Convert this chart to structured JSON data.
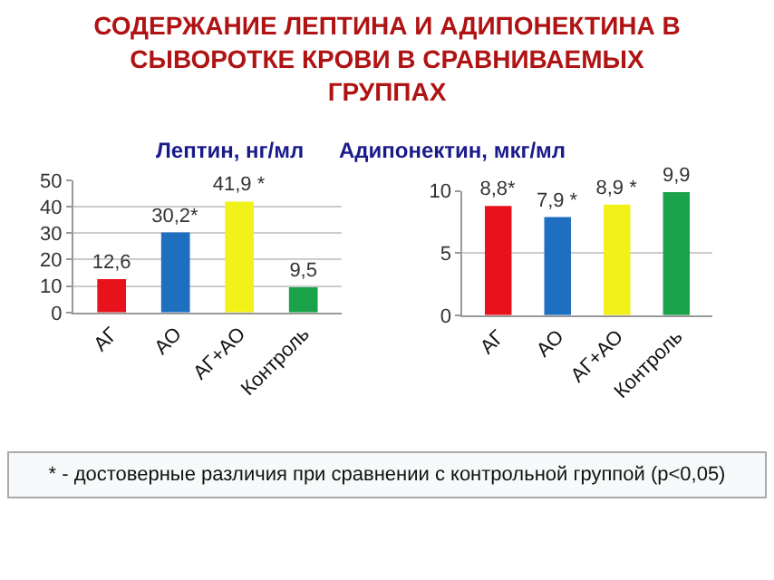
{
  "chart_data": [
    {
      "type": "bar",
      "title": "СОДЕРЖАНИЕ ЛЕПТИНА И АДИПОНЕКТИНА В СЫВОРОТКЕ КРОВИ В СРАВНИВАЕМЫХ ГРУППАХ",
      "subtitle": "Лептин, нг/мл",
      "categories": [
        "АГ",
        "АО",
        "АГ+АО",
        "Контроль"
      ],
      "values": [
        12.6,
        30.2,
        41.9,
        9.5
      ],
      "colors": [
        "#e8121c",
        "#1f6fc0",
        "#f2f21a",
        "#1aa24a"
      ],
      "value_labels": [
        "12,6",
        "30,2*",
        "41,9 *",
        "9,5"
      ],
      "ylim": [
        0,
        50
      ],
      "yticks": [
        0,
        10,
        20,
        30,
        40,
        50
      ],
      "grid": "y"
    },
    {
      "type": "bar",
      "subtitle": "Адипонектин, мкг/мл",
      "categories": [
        "АГ",
        "АО",
        "АГ+АО",
        "Контроль"
      ],
      "values": [
        8.8,
        7.9,
        8.9,
        9.9
      ],
      "colors": [
        "#e8121c",
        "#1f6fc0",
        "#f2f21a",
        "#1aa24a"
      ],
      "value_labels": [
        "8,8*",
        "7,9 *",
        "8,9 *",
        "9,9"
      ],
      "ylim": [
        0,
        10
      ],
      "yticks": [
        0,
        5,
        10
      ],
      "grid": "y",
      "annotations": [
        "* - достоверные различия при сравнении с контрольной группой (p<0,05)"
      ]
    }
  ]
}
